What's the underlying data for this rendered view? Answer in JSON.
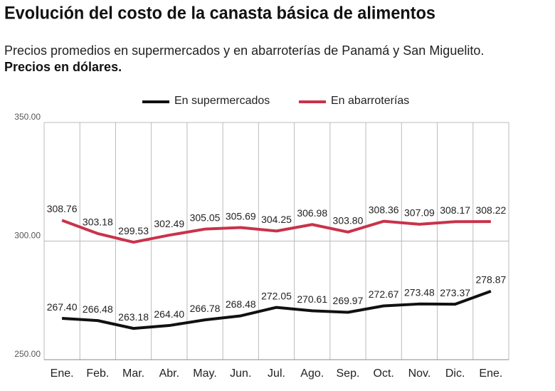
{
  "chart_data": {
    "type": "line",
    "title": "Evolución del costo de la canasta básica de alimentos",
    "subtitle": "Precios promedios en supermercados y en abarroterías de Panamá y San Miguelito.",
    "note": "Precios en dólares.",
    "categories": [
      "Ene.",
      "Feb.",
      "Mar.",
      "Abr.",
      "May.",
      "Jun.",
      "Jul.",
      "Ago.",
      "Sep.",
      "Oct.",
      "Nov.",
      "Dic.",
      "Ene."
    ],
    "series": [
      {
        "name": "En supermercados",
        "color": "#111111",
        "values": [
          267.4,
          266.48,
          263.18,
          264.4,
          266.78,
          268.48,
          272.05,
          270.61,
          269.97,
          272.67,
          273.48,
          273.37,
          278.87
        ],
        "value_labels": [
          "267.40",
          "266.48",
          "263.18",
          "264.40",
          "266.78",
          "268.48",
          "272.05",
          "270.61",
          "269.97",
          "272.67",
          "273.48",
          "273.37",
          "278.87"
        ]
      },
      {
        "name": "En abarroterías",
        "color": "#c8334a",
        "values": [
          308.76,
          303.18,
          299.53,
          302.49,
          305.05,
          305.69,
          304.25,
          306.98,
          303.8,
          308.36,
          307.09,
          308.17,
          308.22
        ],
        "value_labels": [
          "308.76",
          "303.18",
          "299.53",
          "302.49",
          "305.05",
          "305.69",
          "304.25",
          "306.98",
          "303.80",
          "308.36",
          "307.09",
          "308.17",
          "308.22"
        ]
      }
    ],
    "ylim": [
      250,
      350
    ],
    "yticks": [
      {
        "value": 250,
        "label": "250.00"
      },
      {
        "value": 300,
        "label": "300.00"
      },
      {
        "value": 350,
        "label": "350.00"
      }
    ],
    "grid": true
  }
}
